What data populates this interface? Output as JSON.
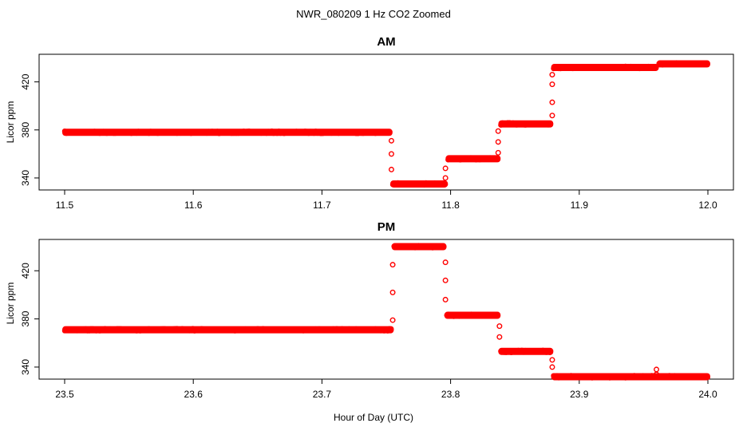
{
  "chart_data": {
    "title": "NWR_080209  1 Hz CO2 Zoomed",
    "xlabel": "Hour of Day (UTC)",
    "marker_color": "#ff0000",
    "panels": [
      {
        "title": "AM",
        "type": "scatter",
        "ylabel": "Licor ppm",
        "xlim": [
          11.5,
          12.0
        ],
        "ylim": [
          330,
          443
        ],
        "xticks": [
          11.5,
          11.6,
          11.7,
          11.8,
          11.9,
          12.0
        ],
        "xtick_labels": [
          "11.5",
          "11.6",
          "11.7",
          "11.8",
          "11.9",
          "12.0"
        ],
        "yticks": [
          340,
          380,
          420
        ],
        "ytick_labels": [
          "340",
          "380",
          "420"
        ],
        "segments": [
          {
            "x_start": 11.5,
            "x_end": 11.753,
            "y": 378
          },
          {
            "x_start": 11.755,
            "x_end": 11.796,
            "y": 335
          },
          {
            "x_start": 11.798,
            "x_end": 11.837,
            "y": 356
          },
          {
            "x_start": 11.839,
            "x_end": 11.878,
            "y": 385
          },
          {
            "x_start": 11.88,
            "x_end": 11.96,
            "y": 432
          },
          {
            "x_start": 11.962,
            "x_end": 12.0,
            "y": 435
          }
        ],
        "transitions": [
          {
            "x": 11.754,
            "y": 371
          },
          {
            "x": 11.754,
            "y": 360
          },
          {
            "x": 11.754,
            "y": 347
          },
          {
            "x": 11.796,
            "y": 340
          },
          {
            "x": 11.796,
            "y": 348
          },
          {
            "x": 11.837,
            "y": 361
          },
          {
            "x": 11.837,
            "y": 370
          },
          {
            "x": 11.837,
            "y": 379
          },
          {
            "x": 11.879,
            "y": 392
          },
          {
            "x": 11.879,
            "y": 403
          },
          {
            "x": 11.879,
            "y": 418
          },
          {
            "x": 11.879,
            "y": 426
          }
        ]
      },
      {
        "title": "PM",
        "type": "scatter",
        "ylabel": "Licor ppm",
        "xlim": [
          23.5,
          24.0
        ],
        "ylim": [
          330,
          446
        ],
        "xticks": [
          23.5,
          23.6,
          23.7,
          23.8,
          23.9,
          24.0
        ],
        "xtick_labels": [
          "23.5",
          "23.6",
          "23.7",
          "23.8",
          "23.9",
          "24.0"
        ],
        "yticks": [
          340,
          380,
          420
        ],
        "ytick_labels": [
          "340",
          "380",
          "420"
        ],
        "segments": [
          {
            "x_start": 23.5,
            "x_end": 23.754,
            "y": 371
          },
          {
            "x_start": 23.756,
            "x_end": 23.795,
            "y": 440
          },
          {
            "x_start": 23.797,
            "x_end": 23.837,
            "y": 383
          },
          {
            "x_start": 23.839,
            "x_end": 23.878,
            "y": 353
          },
          {
            "x_start": 23.88,
            "x_end": 24.0,
            "y": 332
          }
        ],
        "transitions": [
          {
            "x": 23.755,
            "y": 379
          },
          {
            "x": 23.755,
            "y": 402
          },
          {
            "x": 23.755,
            "y": 425
          },
          {
            "x": 23.796,
            "y": 427
          },
          {
            "x": 23.796,
            "y": 412
          },
          {
            "x": 23.796,
            "y": 396
          },
          {
            "x": 23.838,
            "y": 374
          },
          {
            "x": 23.838,
            "y": 365
          },
          {
            "x": 23.879,
            "y": 346
          },
          {
            "x": 23.879,
            "y": 340
          },
          {
            "x": 23.96,
            "y": 338
          },
          {
            "x": 23.96,
            "y": 334
          }
        ]
      }
    ]
  }
}
